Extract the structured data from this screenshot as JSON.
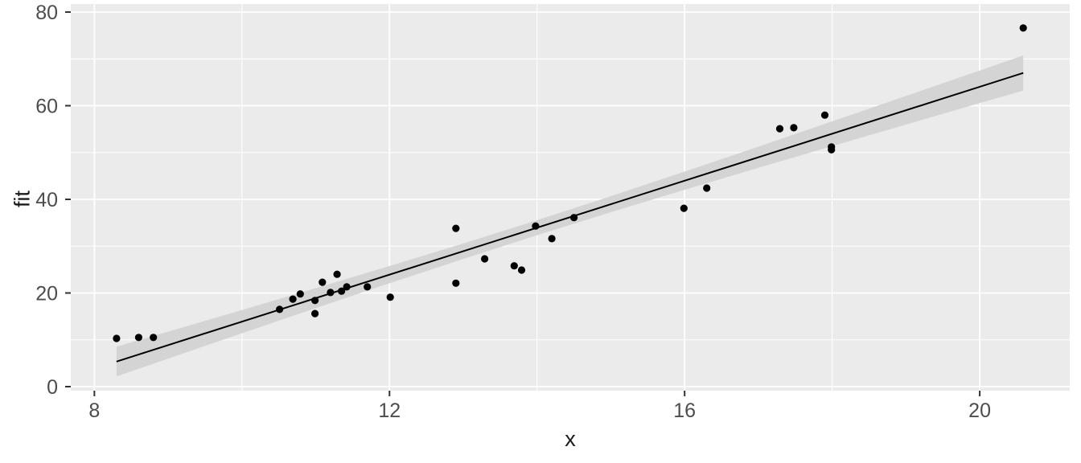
{
  "chart_data": {
    "type": "scatter",
    "title": "",
    "xlabel": "x",
    "ylabel": "fit",
    "legend": "none",
    "grid": "white major and minor gridlines on gray panel",
    "x_ticks": [
      8,
      12,
      16,
      20
    ],
    "y_ticks": [
      0,
      20,
      40,
      60,
      80
    ],
    "x_minor_ticks": [
      10,
      14,
      18
    ],
    "y_minor_ticks": [
      10,
      30,
      50,
      70
    ],
    "xlim": [
      7.68,
      21.22
    ],
    "ylim": [
      -0.86,
      81.72
    ],
    "points": [
      [
        8.3,
        10.3
      ],
      [
        8.6,
        10.5
      ],
      [
        8.8,
        10.5
      ],
      [
        10.51,
        16.5
      ],
      [
        10.69,
        18.7
      ],
      [
        10.79,
        19.8
      ],
      [
        10.99,
        18.4
      ],
      [
        10.99,
        15.6
      ],
      [
        11.09,
        22.3
      ],
      [
        11.2,
        20.1
      ],
      [
        11.29,
        24.0
      ],
      [
        11.35,
        20.4
      ],
      [
        11.42,
        21.3
      ],
      [
        11.7,
        21.3
      ],
      [
        12.01,
        19.1
      ],
      [
        12.9,
        33.8
      ],
      [
        12.9,
        22.1
      ],
      [
        13.29,
        27.3
      ],
      [
        13.69,
        25.8
      ],
      [
        13.79,
        24.9
      ],
      [
        13.98,
        34.3
      ],
      [
        14.2,
        31.6
      ],
      [
        14.5,
        36.1
      ],
      [
        15.99,
        38.1
      ],
      [
        16.3,
        42.4
      ],
      [
        17.29,
        55.1
      ],
      [
        17.48,
        55.3
      ],
      [
        17.9,
        58.0
      ],
      [
        17.99,
        50.6
      ],
      [
        17.99,
        51.2
      ],
      [
        20.59,
        76.6
      ]
    ],
    "regression_line": {
      "slope": 5.016,
      "intercept": -36.28,
      "x_start": 8.3,
      "x_end": 20.59
    },
    "confidence_band": {
      "x": [
        8.3,
        9.0,
        10.0,
        11.0,
        12.0,
        13.0,
        14.0,
        15.0,
        16.0,
        17.0,
        18.0,
        19.0,
        20.0,
        20.59
      ],
      "half_width": [
        3.18,
        2.88,
        2.48,
        2.13,
        1.84,
        1.65,
        1.6,
        1.71,
        1.94,
        2.26,
        2.64,
        3.05,
        3.49,
        3.75
      ]
    },
    "colors": {
      "panel_bg": "#EBEBEB",
      "grid": "#FFFFFF",
      "point": "#000000",
      "line": "#000000",
      "band": "#D4D4D4",
      "tick_label": "#4D4D4D",
      "axis_title": "#1A1A1A",
      "tick_mark": "#333333"
    }
  }
}
